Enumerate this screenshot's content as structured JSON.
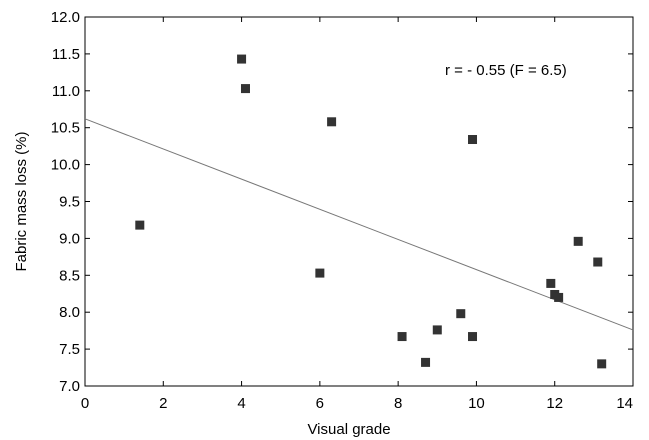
{
  "chart_data": {
    "type": "scatter",
    "xlabel": "Visual grade",
    "ylabel": "Fabric mass loss (%)",
    "xlim": [
      0,
      14
    ],
    "ylim": [
      7.0,
      12.0
    ],
    "x_ticks": [
      0,
      2,
      4,
      6,
      8,
      10,
      12,
      14
    ],
    "y_ticks": [
      7.0,
      7.5,
      8.0,
      8.5,
      9.0,
      9.5,
      10.0,
      10.5,
      11.0,
      11.5,
      12.0
    ],
    "y_tick_labels": [
      "7.0",
      "7.5",
      "8.0",
      "8.5",
      "9.0",
      "9.5",
      "10.0",
      "10.5",
      "11.0",
      "11.5",
      "12.0"
    ],
    "grid": false,
    "points": [
      {
        "x": 1.4,
        "y": 9.18
      },
      {
        "x": 4.0,
        "y": 11.43
      },
      {
        "x": 4.1,
        "y": 11.03
      },
      {
        "x": 6.0,
        "y": 8.53
      },
      {
        "x": 6.3,
        "y": 10.58
      },
      {
        "x": 8.1,
        "y": 7.67
      },
      {
        "x": 8.7,
        "y": 7.32
      },
      {
        "x": 9.0,
        "y": 7.76
      },
      {
        "x": 9.6,
        "y": 7.98
      },
      {
        "x": 9.9,
        "y": 7.67
      },
      {
        "x": 9.9,
        "y": 10.34
      },
      {
        "x": 11.9,
        "y": 8.39
      },
      {
        "x": 12.0,
        "y": 8.24
      },
      {
        "x": 12.1,
        "y": 8.2
      },
      {
        "x": 12.6,
        "y": 8.96
      },
      {
        "x": 13.1,
        "y": 8.68
      },
      {
        "x": 13.2,
        "y": 7.3
      }
    ],
    "trendline": {
      "x": [
        0,
        14
      ],
      "y": [
        10.62,
        7.76
      ]
    },
    "annotation": "r = - 0.55 (F = 6.5)",
    "marker_color": "#333333",
    "line_color": "#777777"
  }
}
